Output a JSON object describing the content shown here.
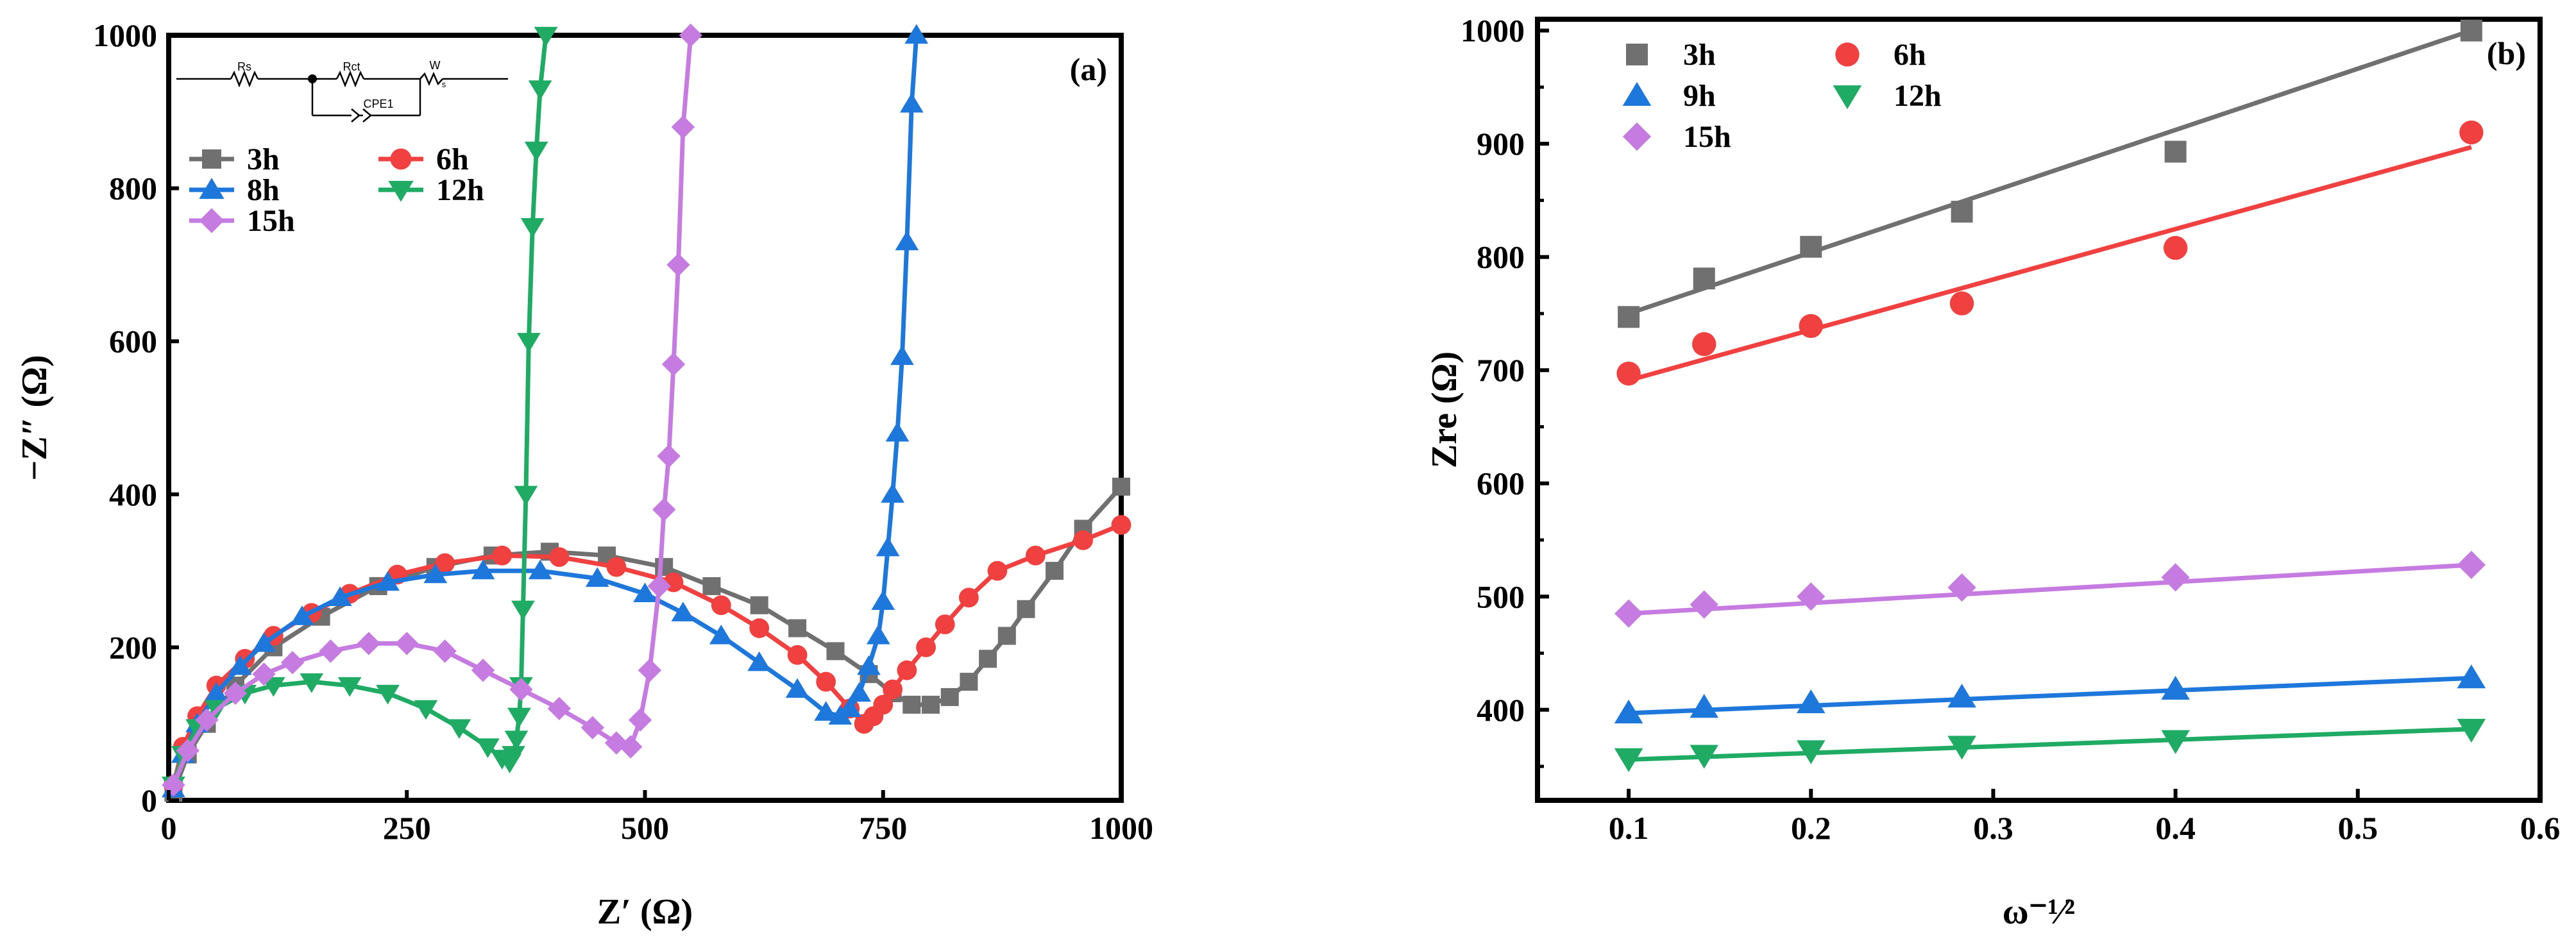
{
  "chart_data": [
    {
      "type": "line",
      "panel_label": "(a)",
      "xlabel": "Z′ (Ω)",
      "ylabel": "−Z″ (Ω)",
      "xlim": [
        0,
        1000
      ],
      "ylim": [
        0,
        1000
      ],
      "xticks": [
        0,
        250,
        500,
        750,
        1000
      ],
      "yticks": [
        0,
        200,
        400,
        600,
        800,
        1000
      ],
      "legend_columns": 2,
      "circuit": {
        "labels": [
          "Rs",
          "Rct",
          "W",
          "s",
          "CPE1"
        ]
      },
      "series": [
        {
          "name": "3h",
          "color": "#707070",
          "marker": "square",
          "x": [
            5,
            20,
            40,
            70,
            110,
            160,
            220,
            280,
            340,
            400,
            460,
            520,
            570,
            620,
            660,
            700,
            735,
            760,
            780,
            800,
            820,
            840,
            860,
            880,
            900,
            930,
            960,
            1000
          ],
          "y": [
            10,
            60,
            100,
            150,
            200,
            240,
            280,
            305,
            320,
            325,
            320,
            305,
            280,
            255,
            225,
            195,
            165,
            140,
            125,
            125,
            135,
            155,
            185,
            215,
            250,
            300,
            355,
            410
          ]
        },
        {
          "name": "6h",
          "color": "#f04040",
          "marker": "circle",
          "x": [
            5,
            15,
            30,
            50,
            80,
            110,
            150,
            190,
            240,
            290,
            350,
            410,
            470,
            530,
            580,
            620,
            660,
            690,
            715,
            730,
            740,
            750,
            760,
            775,
            795,
            815,
            840,
            870,
            910,
            960,
            1000
          ],
          "y": [
            20,
            70,
            110,
            150,
            185,
            215,
            245,
            270,
            295,
            310,
            320,
            318,
            305,
            285,
            255,
            225,
            190,
            155,
            120,
            100,
            110,
            125,
            145,
            170,
            200,
            230,
            265,
            300,
            320,
            340,
            360
          ]
        },
        {
          "name": "8h",
          "color": "#1e78dc",
          "marker": "triangle-up",
          "x": [
            5,
            15,
            30,
            50,
            75,
            100,
            140,
            180,
            230,
            280,
            330,
            390,
            450,
            500,
            540,
            580,
            620,
            660,
            690,
            705,
            715,
            725,
            735,
            745,
            750,
            755,
            760,
            765,
            770,
            775,
            780,
            785
          ],
          "y": [
            15,
            60,
            100,
            140,
            175,
            205,
            240,
            265,
            285,
            295,
            300,
            300,
            290,
            270,
            245,
            215,
            180,
            145,
            115,
            110,
            120,
            140,
            175,
            215,
            260,
            330,
            400,
            480,
            580,
            730,
            910,
            1000
          ]
        },
        {
          "name": "12h",
          "color": "#1fab63",
          "marker": "triangle-down",
          "x": [
            5,
            15,
            30,
            50,
            80,
            110,
            150,
            190,
            230,
            270,
            305,
            335,
            350,
            358,
            362,
            365,
            368,
            370,
            372,
            375,
            378,
            382,
            386,
            390,
            396
          ],
          "y": [
            20,
            60,
            95,
            120,
            140,
            150,
            155,
            150,
            140,
            120,
            95,
            70,
            55,
            50,
            60,
            80,
            110,
            150,
            250,
            400,
            600,
            750,
            850,
            930,
            1000
          ]
        },
        {
          "name": "15h",
          "color": "#c57be0",
          "marker": "diamond",
          "x": [
            5,
            20,
            40,
            70,
            100,
            130,
            170,
            210,
            250,
            290,
            330,
            370,
            410,
            445,
            470,
            485,
            495,
            505,
            515,
            520,
            525,
            530,
            535,
            540,
            548
          ],
          "y": [
            20,
            65,
            105,
            140,
            165,
            180,
            195,
            205,
            205,
            195,
            170,
            145,
            120,
            95,
            75,
            70,
            105,
            170,
            280,
            380,
            450,
            570,
            700,
            880,
            1000
          ]
        }
      ]
    },
    {
      "type": "scatter",
      "panel_label": "(b)",
      "xlabel": "ω⁻¹⁄²",
      "ylabel": "Zre (Ω)",
      "xlim": [
        0.05,
        0.6
      ],
      "ylim": [
        320,
        1010
      ],
      "xticks": [
        0.1,
        0.2,
        0.3,
        0.4,
        0.5,
        0.6
      ],
      "xtick_labels": [
        "0.1",
        "0.2",
        "0.3",
        "0.4",
        "0.5",
        "0.6"
      ],
      "yticks": [
        400,
        500,
        600,
        700,
        800,
        900,
        1000
      ],
      "legend_columns": 2,
      "x": [
        0.1,
        0.1414,
        0.2,
        0.2828,
        0.4,
        0.5623
      ],
      "series": [
        {
          "name": "3h",
          "color": "#707070",
          "marker": "square",
          "values": [
            747,
            781,
            809,
            840,
            893,
            1000
          ],
          "fit": [
            750,
            1000
          ]
        },
        {
          "name": "6h",
          "color": "#f04040",
          "marker": "circle",
          "values": [
            697,
            723,
            739,
            759,
            808,
            910
          ],
          "fit": [
            691,
            897
          ]
        },
        {
          "name": "9h",
          "color": "#1e78dc",
          "marker": "triangle-up",
          "values": [
            397,
            402,
            406,
            411,
            418,
            428
          ],
          "fit": [
            397,
            428
          ]
        },
        {
          "name": "12h",
          "color": "#1fab63",
          "marker": "triangle-down",
          "values": [
            357,
            360,
            364,
            368,
            373,
            383
          ],
          "fit": [
            356,
            383
          ]
        },
        {
          "name": "15h",
          "color": "#c57be0",
          "marker": "diamond",
          "values": [
            485,
            493,
            500,
            508,
            517,
            528
          ],
          "fit": [
            485,
            528
          ]
        }
      ]
    }
  ]
}
